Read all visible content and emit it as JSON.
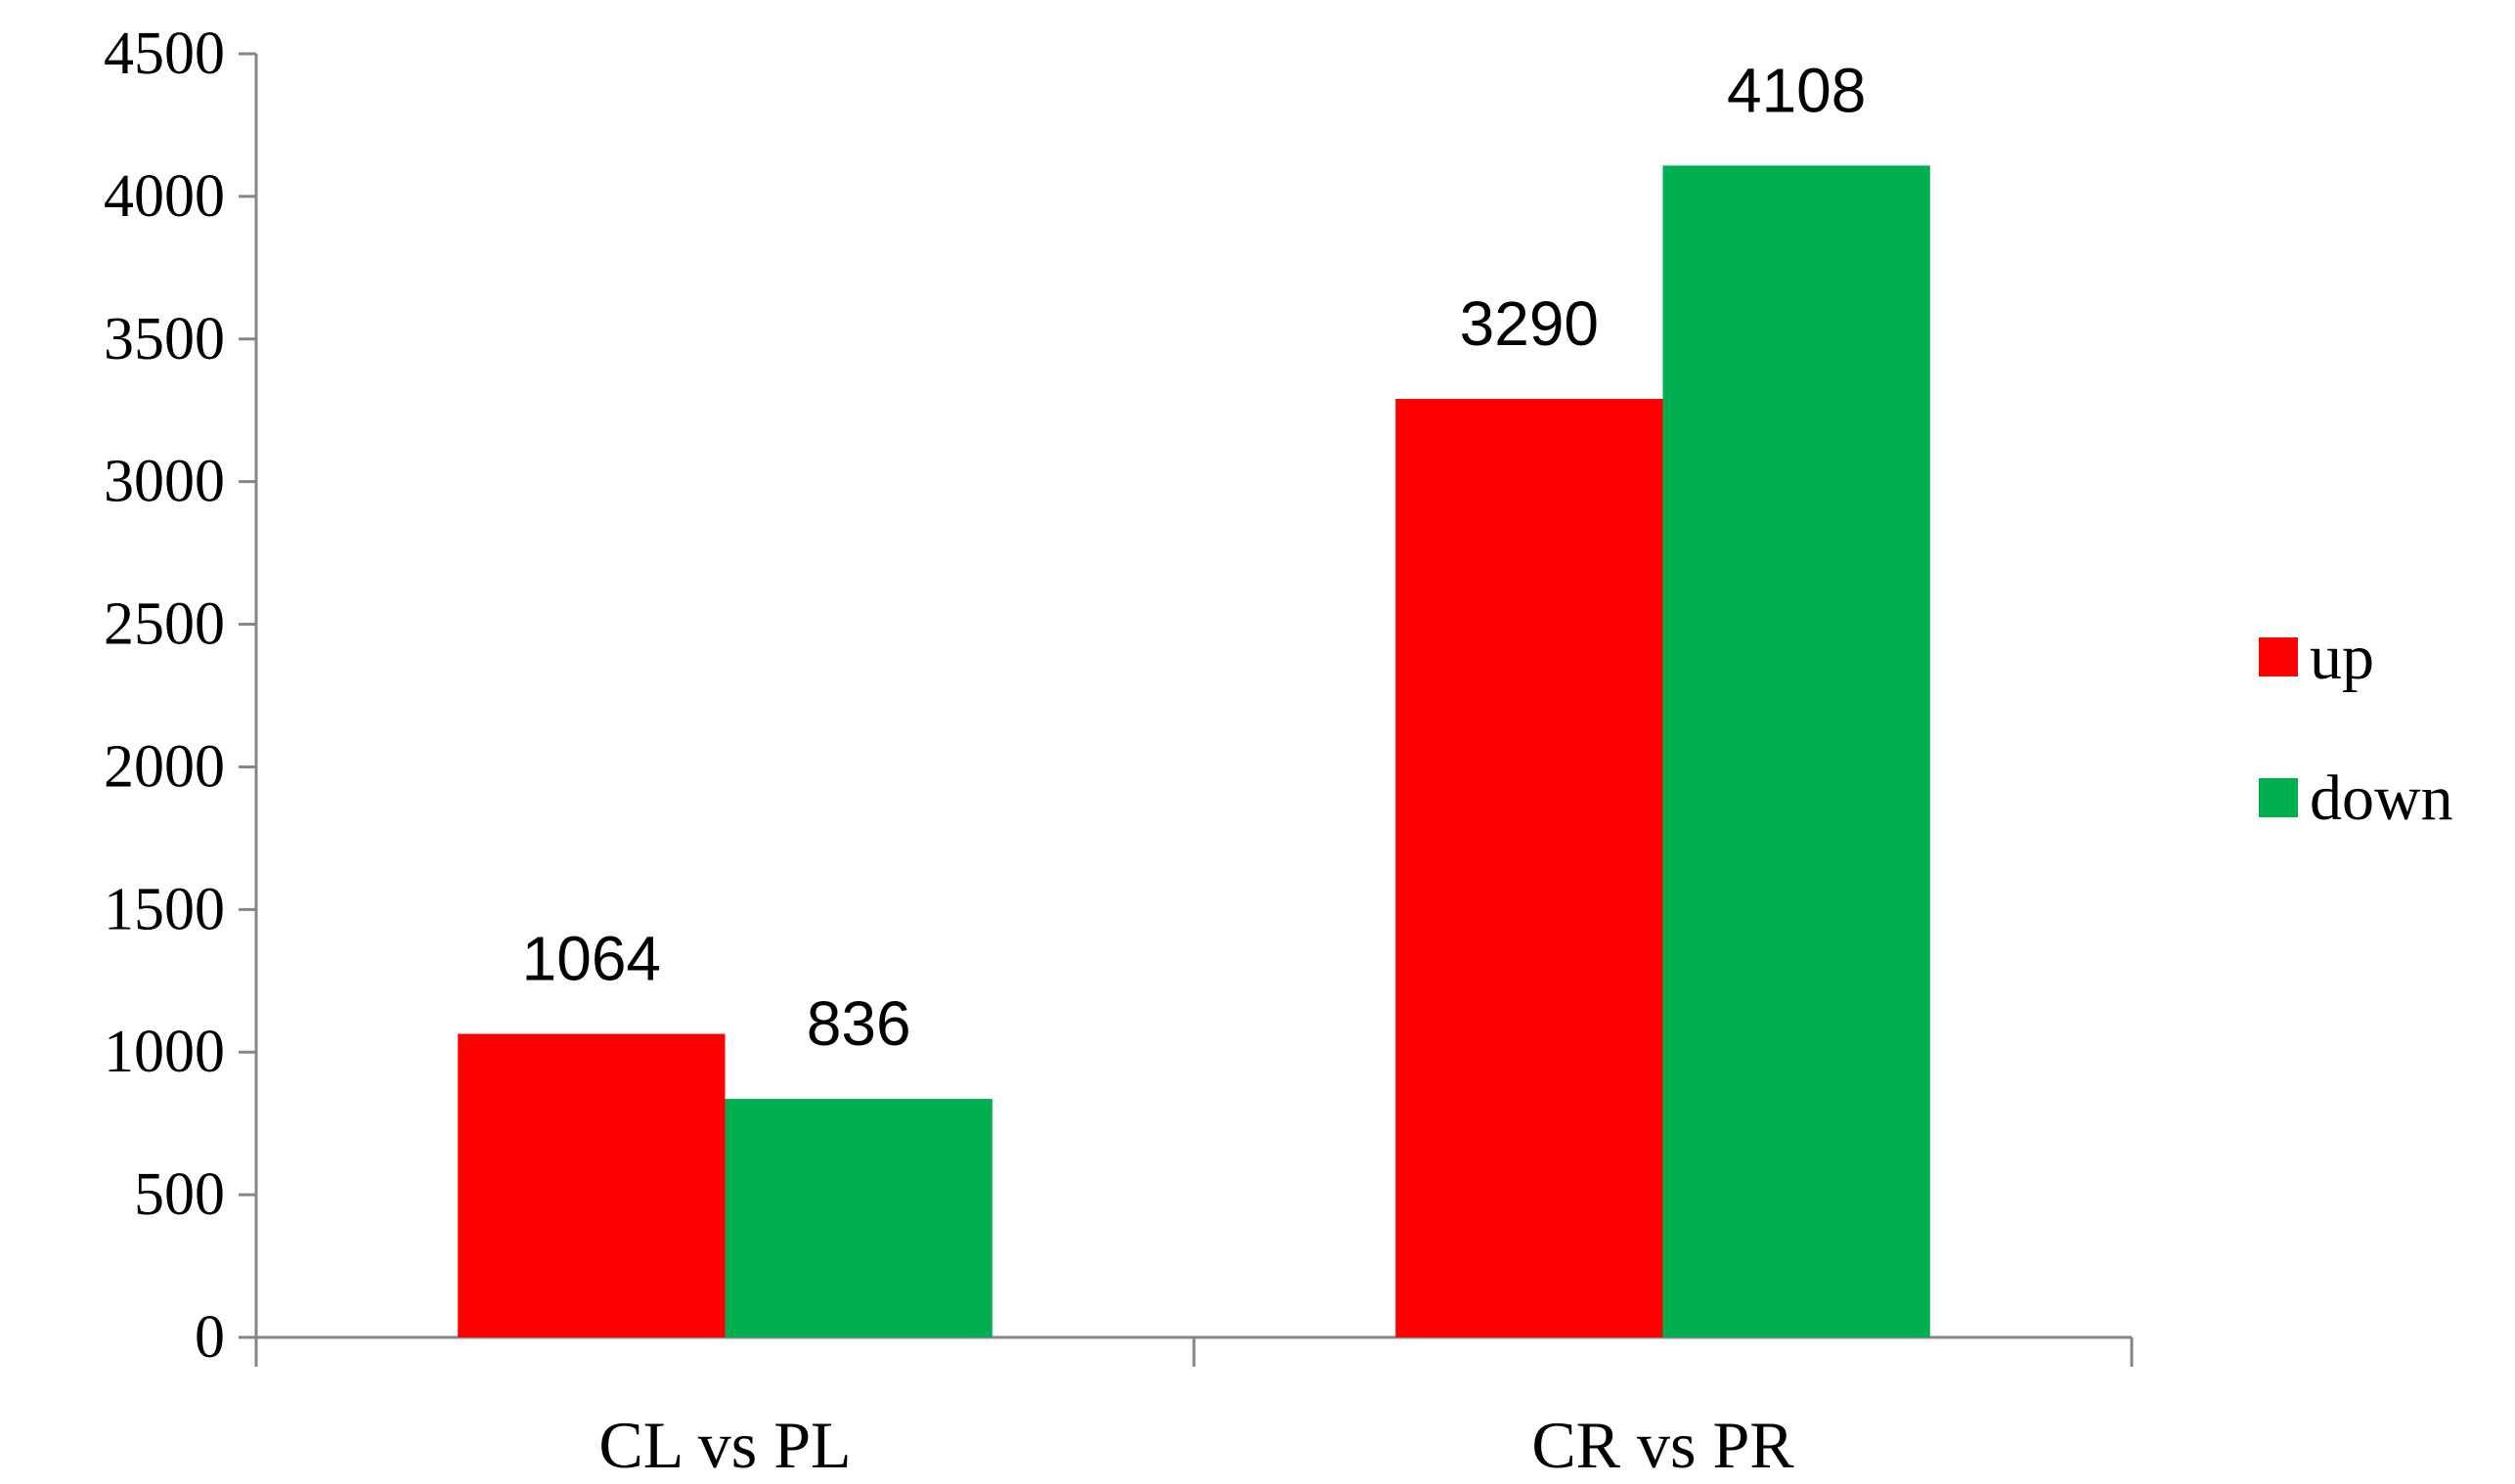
{
  "chart_data": {
    "type": "bar",
    "categories": [
      "CL vs PL",
      "CR vs PR"
    ],
    "series": [
      {
        "name": "up",
        "values": [
          1064,
          3290
        ],
        "color": "#ff0000"
      },
      {
        "name": "down",
        "values": [
          836,
          4108
        ],
        "color": "#00b050"
      }
    ],
    "data_labels": [
      [
        "1064",
        "3290"
      ],
      [
        "836",
        "4108"
      ]
    ],
    "ylim": [
      0,
      4500
    ],
    "yticks": [
      0,
      500,
      1000,
      1500,
      2000,
      2500,
      3000,
      3500,
      4000,
      4500
    ],
    "title": "",
    "xlabel": "",
    "ylabel": "",
    "legend_position": "right",
    "grid": false
  }
}
